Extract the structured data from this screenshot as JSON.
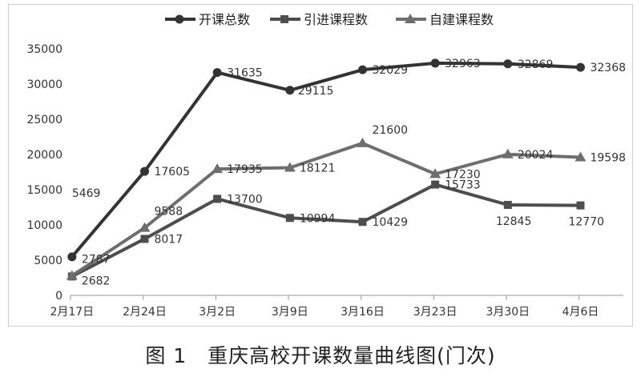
{
  "caption": "图 1　重庆高校开课数量曲线图(门次)",
  "chart_data": {
    "type": "line",
    "categories": [
      "2月17日",
      "2月24日",
      "3月2日",
      "3月9日",
      "3月16日",
      "3月23日",
      "3月30日",
      "4月6日"
    ],
    "ylim": [
      0,
      35000
    ],
    "yticks": [
      0,
      5000,
      10000,
      15000,
      20000,
      25000,
      30000,
      35000
    ],
    "grid": false,
    "legend_position": "top",
    "series": [
      {
        "name": "开课总数",
        "marker": "circle",
        "color": "#333333",
        "values": [
          5469,
          17605,
          31635,
          29115,
          32029,
          32963,
          32869,
          32368
        ]
      },
      {
        "name": "引进课程数",
        "marker": "square",
        "color": "#4d4d4d",
        "values": [
          2682,
          8017,
          13700,
          10994,
          10429,
          15733,
          12845,
          12770
        ]
      },
      {
        "name": "自建课程数",
        "marker": "triangle",
        "color": "#6e6e6e",
        "values": [
          2787,
          9588,
          17935,
          18121,
          21600,
          17230,
          20024,
          19598
        ]
      }
    ]
  }
}
